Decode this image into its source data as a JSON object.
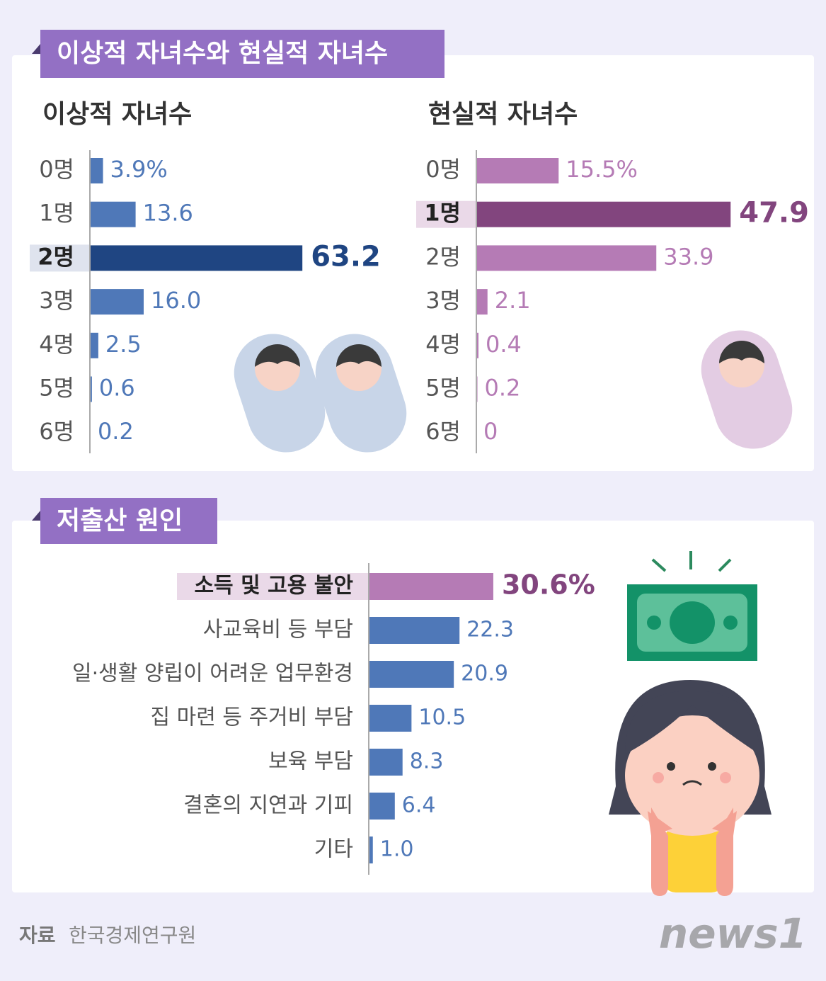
{
  "header_1": "이상적 자녀수와 현실적 자녀수",
  "header_2": "저출산 원인",
  "source_label": "자료",
  "source": "한국경제연구원",
  "logo": "news1",
  "chart_data": [
    {
      "type": "bar",
      "title": "이상적 자녀수",
      "categories": [
        "0명",
        "1명",
        "2명",
        "3명",
        "4명",
        "5명",
        "6명"
      ],
      "values": [
        3.9,
        13.6,
        63.2,
        16.0,
        2.5,
        0.6,
        0.2
      ],
      "value_labels": [
        "3.9%",
        "13.6",
        "63.2",
        "16.0",
        "2.5",
        "0.6",
        "0.2"
      ],
      "color": "#4f78b8",
      "highlight": 2,
      "highlight_color": "#1f4582",
      "highlight_label_color": "#1f4582",
      "highlight_bg": "#dfe3ee"
    },
    {
      "type": "bar",
      "title": "현실적 자녀수",
      "categories": [
        "0명",
        "1명",
        "2명",
        "3명",
        "4명",
        "5명",
        "6명"
      ],
      "values": [
        15.5,
        47.9,
        33.9,
        2.1,
        0.4,
        0.2,
        0
      ],
      "value_labels": [
        "15.5%",
        "47.9",
        "33.9",
        "2.1",
        "0.4",
        "0.2",
        "0"
      ],
      "color": "#b57bb5",
      "highlight": 1,
      "highlight_color": "#82457e",
      "highlight_label_color": "#82457e",
      "highlight_bg": "#ead9e8"
    },
    {
      "type": "bar",
      "categories": [
        "소득 및 고용 불안",
        "사교육비 등 부담",
        "일·생활 양립이 어려운 업무환경",
        "집 마련 등 주거비 부담",
        "보육 부담",
        "결혼의 지연과 기피",
        "기타"
      ],
      "values": [
        30.6,
        22.3,
        20.9,
        10.5,
        8.3,
        6.4,
        1.0
      ],
      "value_labels": [
        "30.6%",
        "22.3",
        "20.9",
        "10.5",
        "8.3",
        "6.4",
        "1.0"
      ],
      "color": "#4f78b8",
      "highlight": 0,
      "highlight_color": "#b57bb5",
      "highlight_label_color": "#82457e",
      "highlight_bg": "#ead9e8"
    }
  ]
}
